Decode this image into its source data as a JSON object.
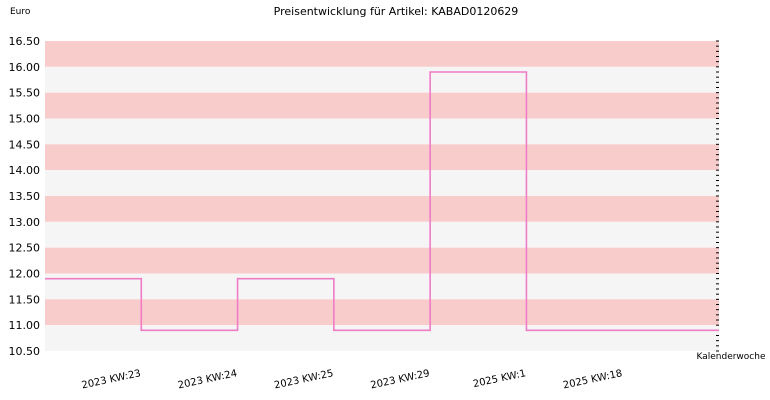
{
  "chart_data": {
    "type": "line",
    "title": "Preisentwicklung für Artikel: KABAD0120629",
    "ylabel": "Euro",
    "xlabel": "Kalenderwoche",
    "ylim": [
      10.5,
      16.5
    ],
    "yticks": [
      "16.50",
      "16.00",
      "15.50",
      "15.00",
      "14.50",
      "14.00",
      "13.50",
      "13.00",
      "12.50",
      "12.00",
      "11.50",
      "11.00",
      "10.50"
    ],
    "categories": [
      "2023 KW:23",
      "2023 KW:24",
      "2023 KW:25",
      "2023 KW:29",
      "2025 KW:1",
      "2025 KW:18"
    ],
    "series": [
      {
        "values": [
          11.9,
          10.9,
          11.9,
          10.9,
          15.9,
          10.9
        ]
      }
    ],
    "line_style": "step",
    "grid": true,
    "band_colors": [
      "#f9cccc",
      "#f5f5f5"
    ],
    "line_color": "#f07cc6"
  }
}
